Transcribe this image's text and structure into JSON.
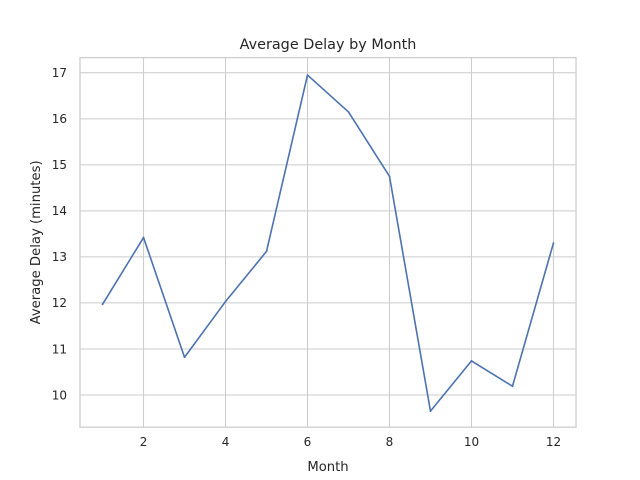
{
  "chart_data": {
    "type": "line",
    "title": "Average Delay by Month",
    "xlabel": "Month",
    "ylabel": "Average Delay (minutes)",
    "x": [
      1,
      2,
      3,
      4,
      5,
      6,
      7,
      8,
      9,
      10,
      11,
      12
    ],
    "series": [
      {
        "values": [
          11.97,
          13.42,
          10.82,
          12.03,
          13.12,
          16.95,
          16.15,
          14.75,
          9.65,
          10.74,
          10.19,
          13.3
        ]
      }
    ],
    "xticks": [
      2,
      4,
      6,
      8,
      10,
      12
    ],
    "yticks": [
      10,
      11,
      12,
      13,
      14,
      15,
      16,
      17
    ],
    "xlim": [
      0.45,
      12.55
    ],
    "ylim": [
      9.3,
      17.33
    ],
    "grid": true,
    "line_color": "#4c72b0"
  }
}
